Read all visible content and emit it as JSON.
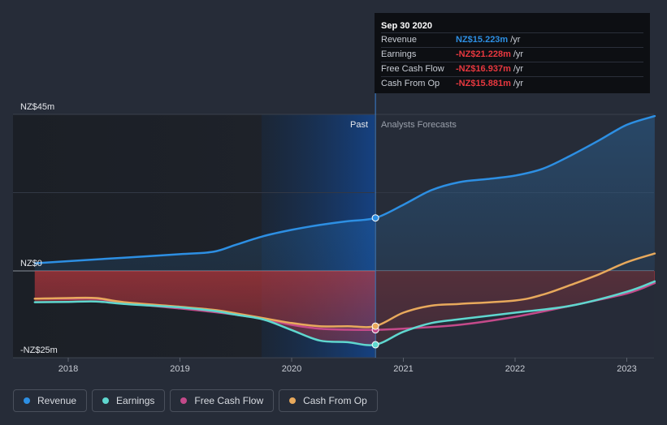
{
  "chart_data": {
    "type": "line",
    "title": "",
    "x_ticks": [
      "2018",
      "2019",
      "2020",
      "2021",
      "2022",
      "2023"
    ],
    "y_ticks": [
      {
        "label": "NZ$45m",
        "value": 45
      },
      {
        "label": "NZ$0",
        "value": 0
      },
      {
        "label": "-NZ$25m",
        "value": -25
      }
    ],
    "ylim": [
      -25,
      45
    ],
    "regions": {
      "past_label": "Past",
      "forecast_label": "Analysts Forecasts",
      "divider_date": 2020.75
    },
    "series": [
      {
        "name": "Revenue",
        "color": "#2d8fe3",
        "points": [
          [
            2017.7,
            2.2
          ],
          [
            2018.0,
            2.8
          ],
          [
            2018.5,
            3.8
          ],
          [
            2019.0,
            4.8
          ],
          [
            2019.3,
            5.5
          ],
          [
            2019.5,
            7.5
          ],
          [
            2019.75,
            10.0
          ],
          [
            2020.0,
            11.8
          ],
          [
            2020.25,
            13.2
          ],
          [
            2020.5,
            14.3
          ],
          [
            2020.75,
            15.223
          ],
          [
            2021.0,
            19.0
          ],
          [
            2021.25,
            23.2
          ],
          [
            2021.5,
            25.5
          ],
          [
            2021.75,
            26.4
          ],
          [
            2022.0,
            27.4
          ],
          [
            2022.25,
            29.4
          ],
          [
            2022.5,
            33.2
          ],
          [
            2022.75,
            37.5
          ],
          [
            2023.0,
            42.0
          ],
          [
            2023.25,
            44.5
          ]
        ]
      },
      {
        "name": "Earnings",
        "color": "#5fd7cf",
        "points": [
          [
            2017.7,
            -9.0
          ],
          [
            2018.0,
            -8.9
          ],
          [
            2018.25,
            -8.8
          ],
          [
            2018.5,
            -9.5
          ],
          [
            2019.0,
            -10.5
          ],
          [
            2019.3,
            -11.5
          ],
          [
            2019.5,
            -12.6
          ],
          [
            2019.75,
            -14.0
          ],
          [
            2020.0,
            -17.0
          ],
          [
            2020.25,
            -20.0
          ],
          [
            2020.5,
            -20.5
          ],
          [
            2020.75,
            -21.228
          ],
          [
            2021.0,
            -17.5
          ],
          [
            2021.25,
            -15.0
          ],
          [
            2021.5,
            -13.9
          ],
          [
            2022.0,
            -12.0
          ],
          [
            2022.5,
            -10.0
          ],
          [
            2023.0,
            -6.0
          ],
          [
            2023.25,
            -3.0
          ]
        ]
      },
      {
        "name": "Free Cash Flow",
        "color": "#c44a8a",
        "points": [
          [
            2017.7,
            -8.0
          ],
          [
            2018.0,
            -8.0
          ],
          [
            2018.25,
            -8.0
          ],
          [
            2018.5,
            -9.2
          ],
          [
            2019.0,
            -10.8
          ],
          [
            2019.3,
            -11.8
          ],
          [
            2019.5,
            -12.6
          ],
          [
            2019.75,
            -13.8
          ],
          [
            2020.0,
            -15.5
          ],
          [
            2020.25,
            -16.6
          ],
          [
            2020.5,
            -16.9
          ],
          [
            2020.75,
            -16.937
          ],
          [
            2021.0,
            -16.6
          ],
          [
            2021.5,
            -15.5
          ],
          [
            2022.0,
            -13.2
          ],
          [
            2022.5,
            -10.0
          ],
          [
            2023.0,
            -6.5
          ],
          [
            2023.25,
            -3.5
          ]
        ]
      },
      {
        "name": "Cash From Op",
        "color": "#e8a95c",
        "points": [
          [
            2017.7,
            -8.0
          ],
          [
            2018.0,
            -7.8
          ],
          [
            2018.25,
            -7.8
          ],
          [
            2018.5,
            -9.0
          ],
          [
            2019.0,
            -10.3
          ],
          [
            2019.3,
            -11.2
          ],
          [
            2019.5,
            -12.2
          ],
          [
            2019.75,
            -13.6
          ],
          [
            2020.0,
            -15.0
          ],
          [
            2020.25,
            -15.9
          ],
          [
            2020.5,
            -15.9
          ],
          [
            2020.75,
            -15.881
          ],
          [
            2021.0,
            -12.0
          ],
          [
            2021.25,
            -10.0
          ],
          [
            2021.5,
            -9.5
          ],
          [
            2022.0,
            -8.5
          ],
          [
            2022.25,
            -6.8
          ],
          [
            2022.5,
            -4.0
          ],
          [
            2022.75,
            -1.0
          ],
          [
            2023.0,
            2.5
          ],
          [
            2023.25,
            5.0
          ]
        ]
      }
    ]
  },
  "tooltip": {
    "date": "Sep 30 2020",
    "rows": [
      {
        "label": "Revenue",
        "value": "NZ$15.223m",
        "unit": "/yr",
        "color": "#2d8fe3"
      },
      {
        "label": "Earnings",
        "value": "-NZ$21.228m",
        "unit": "/yr",
        "color": "#e8383f"
      },
      {
        "label": "Free Cash Flow",
        "value": "-NZ$16.937m",
        "unit": "/yr",
        "color": "#e8383f"
      },
      {
        "label": "Cash From Op",
        "value": "-NZ$15.881m",
        "unit": "/yr",
        "color": "#e8383f"
      }
    ]
  },
  "legend": [
    {
      "label": "Revenue",
      "color": "#2d8fe3"
    },
    {
      "label": "Earnings",
      "color": "#5fd7cf"
    },
    {
      "label": "Free Cash Flow",
      "color": "#c44a8a"
    },
    {
      "label": "Cash From Op",
      "color": "#e8a95c"
    }
  ]
}
